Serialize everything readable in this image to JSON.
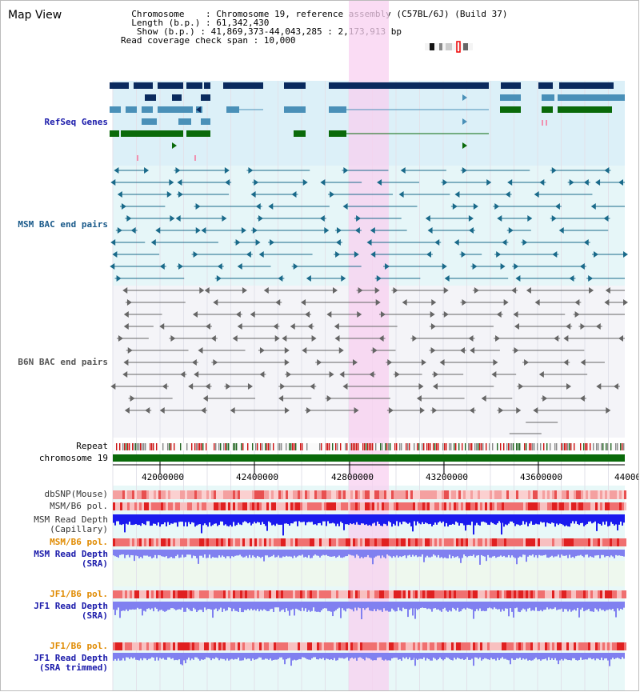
{
  "view_title": "Map View",
  "header": {
    "line1": "  Chromosome    : Chromosome 19, reference assembly (C57BL/6J) (Build 37)",
    "line2": "  Length (b.p.) : 61,342,430",
    "line3": "   Show (b.p.) : 41,869,373-44,043,285 : 2,173,913 bp",
    "line4": "Read coverage check span : 10,000"
  },
  "tracks": {
    "refseq": "RefSeq Genes",
    "msm_bac": "MSM BAC end pairs",
    "b6n_bac": "B6N BAC end pairs",
    "repeat": "Repeat",
    "chromosome": "chromosome 19",
    "dbsnp": "dbSNP(Mouse)",
    "msm_b6_pol": "MSM/B6 pol.",
    "msm_depth_cap": "MSM Read Depth\n(Capillary)",
    "msm_b6_pol2": "MSM/B6 pol.",
    "msm_depth_sra": "MSM Read Depth\n(SRA)",
    "jf1_b6_pol": "JF1/B6 pol.",
    "jf1_depth_sra": "JF1 Read Depth\n(SRA)",
    "jf1_b6_pol2": "JF1/B6 pol.",
    "jf1_depth_trim": "JF1 Read Depth\n(SRA trimmed)"
  },
  "axis": {
    "ticks": [
      "42000000",
      "42400000",
      "42800000",
      "43200000",
      "43600000",
      "44000000"
    ]
  },
  "colors": {
    "highlight": "#f8d0f0",
    "refseq_dark": "#0a2a5e",
    "refseq_mid": "#4a90b8",
    "refseq_green": "#0a6a0a",
    "msm_bac": "#1a6a8a",
    "b6n_bac": "#666666",
    "chromosome": "#0a6a0a",
    "depth_blue": "#1a1aee",
    "depth_light": "#8080f0"
  }
}
